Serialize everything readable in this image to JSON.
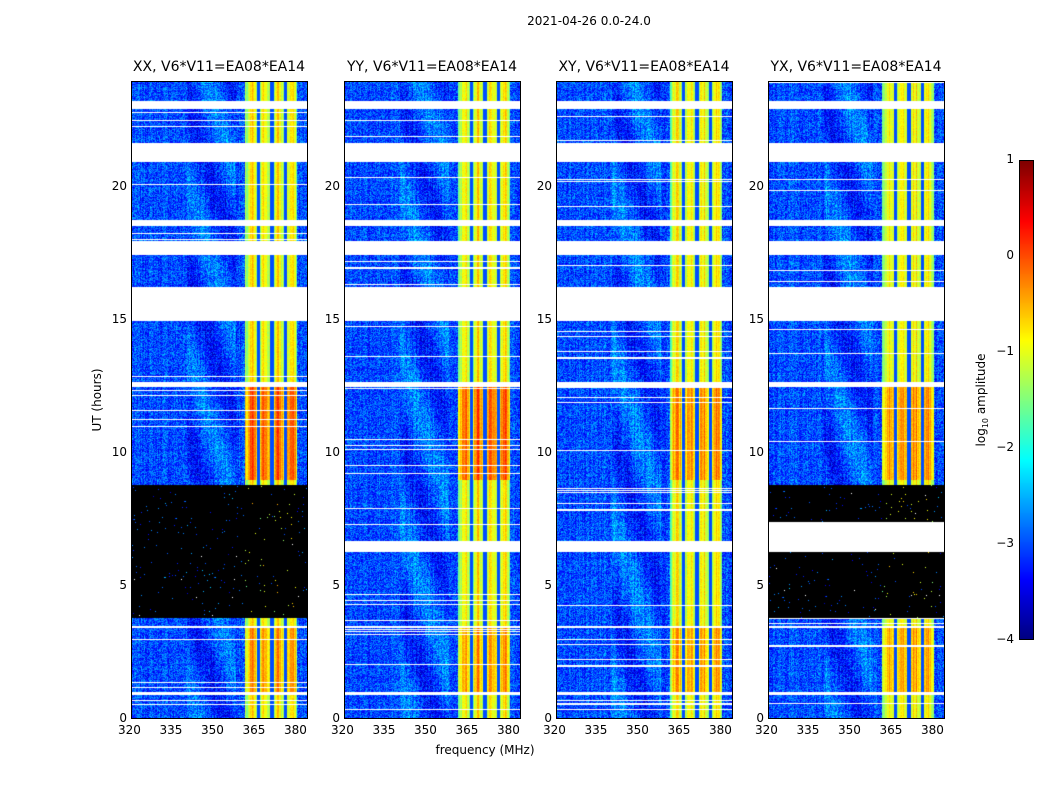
{
  "chart_data": {
    "type": "heatmap",
    "title": "2021-04-26 0.0-24.0",
    "xlabel": "frequency (MHz)",
    "ylabel": "UT (hours)",
    "xlim": [
      320,
      384
    ],
    "ylim": [
      0,
      24
    ],
    "xticks": [
      320,
      335,
      350,
      365,
      380
    ],
    "yticks": [
      0,
      5,
      10,
      15,
      20
    ],
    "colorbar": {
      "label_prefix": "log",
      "label_sub": "10",
      "label_suffix": " amplitude",
      "colormap": "jet",
      "range": [
        -4,
        1
      ],
      "ticks": [
        1,
        0,
        -1,
        -2,
        -3,
        -4
      ],
      "tick_labels": [
        "1",
        "0",
        "−1",
        "−2",
        "−3",
        "−4"
      ]
    },
    "bright_band_mhz": [
      361,
      380
    ],
    "panels": [
      {
        "title": "XX, V6*V11=EA08*EA14",
        "parallel": true,
        "zero_hours": [
          [
            3.8,
            8.8
          ],
          [
            6.3,
            7.4
          ]
        ],
        "flagged_hours": [
          [
            15.0,
            16.3
          ],
          [
            17.5,
            18.0
          ],
          [
            0.9,
            1.0
          ],
          [
            23.0,
            23.3
          ],
          [
            21.0,
            21.7
          ],
          [
            12.5,
            12.7
          ],
          [
            3.4,
            3.5
          ],
          [
            18.6,
            18.8
          ]
        ]
      },
      {
        "title": "YY, V6*V11=EA08*EA14",
        "parallel": true,
        "zero_hours": [],
        "flagged_hours": [
          [
            15.0,
            16.3
          ],
          [
            17.5,
            18.0
          ],
          [
            0.9,
            1.0
          ],
          [
            23.0,
            23.3
          ],
          [
            21.0,
            21.7
          ],
          [
            12.5,
            12.7
          ],
          [
            3.4,
            3.5
          ],
          [
            18.6,
            18.8
          ],
          [
            6.3,
            6.7
          ]
        ]
      },
      {
        "title": "XY, V6*V11=EA08*EA14",
        "parallel": false,
        "zero_hours": [],
        "flagged_hours": [
          [
            15.0,
            16.3
          ],
          [
            17.5,
            18.0
          ],
          [
            0.9,
            1.0
          ],
          [
            23.0,
            23.3
          ],
          [
            21.0,
            21.7
          ],
          [
            12.5,
            12.7
          ],
          [
            3.4,
            3.5
          ],
          [
            18.6,
            18.8
          ],
          [
            6.3,
            6.7
          ]
        ]
      },
      {
        "title": "YX, V6*V11=EA08*EA14",
        "parallel": false,
        "zero_hours": [
          [
            3.8,
            6.3
          ],
          [
            7.4,
            8.8
          ]
        ],
        "flagged_hours": [
          [
            15.0,
            16.3
          ],
          [
            17.5,
            18.0
          ],
          [
            0.9,
            1.0
          ],
          [
            23.0,
            23.3
          ],
          [
            21.0,
            21.7
          ],
          [
            12.5,
            12.7
          ],
          [
            3.4,
            3.5
          ],
          [
            18.6,
            18.8
          ],
          [
            6.3,
            7.4
          ]
        ]
      }
    ]
  }
}
